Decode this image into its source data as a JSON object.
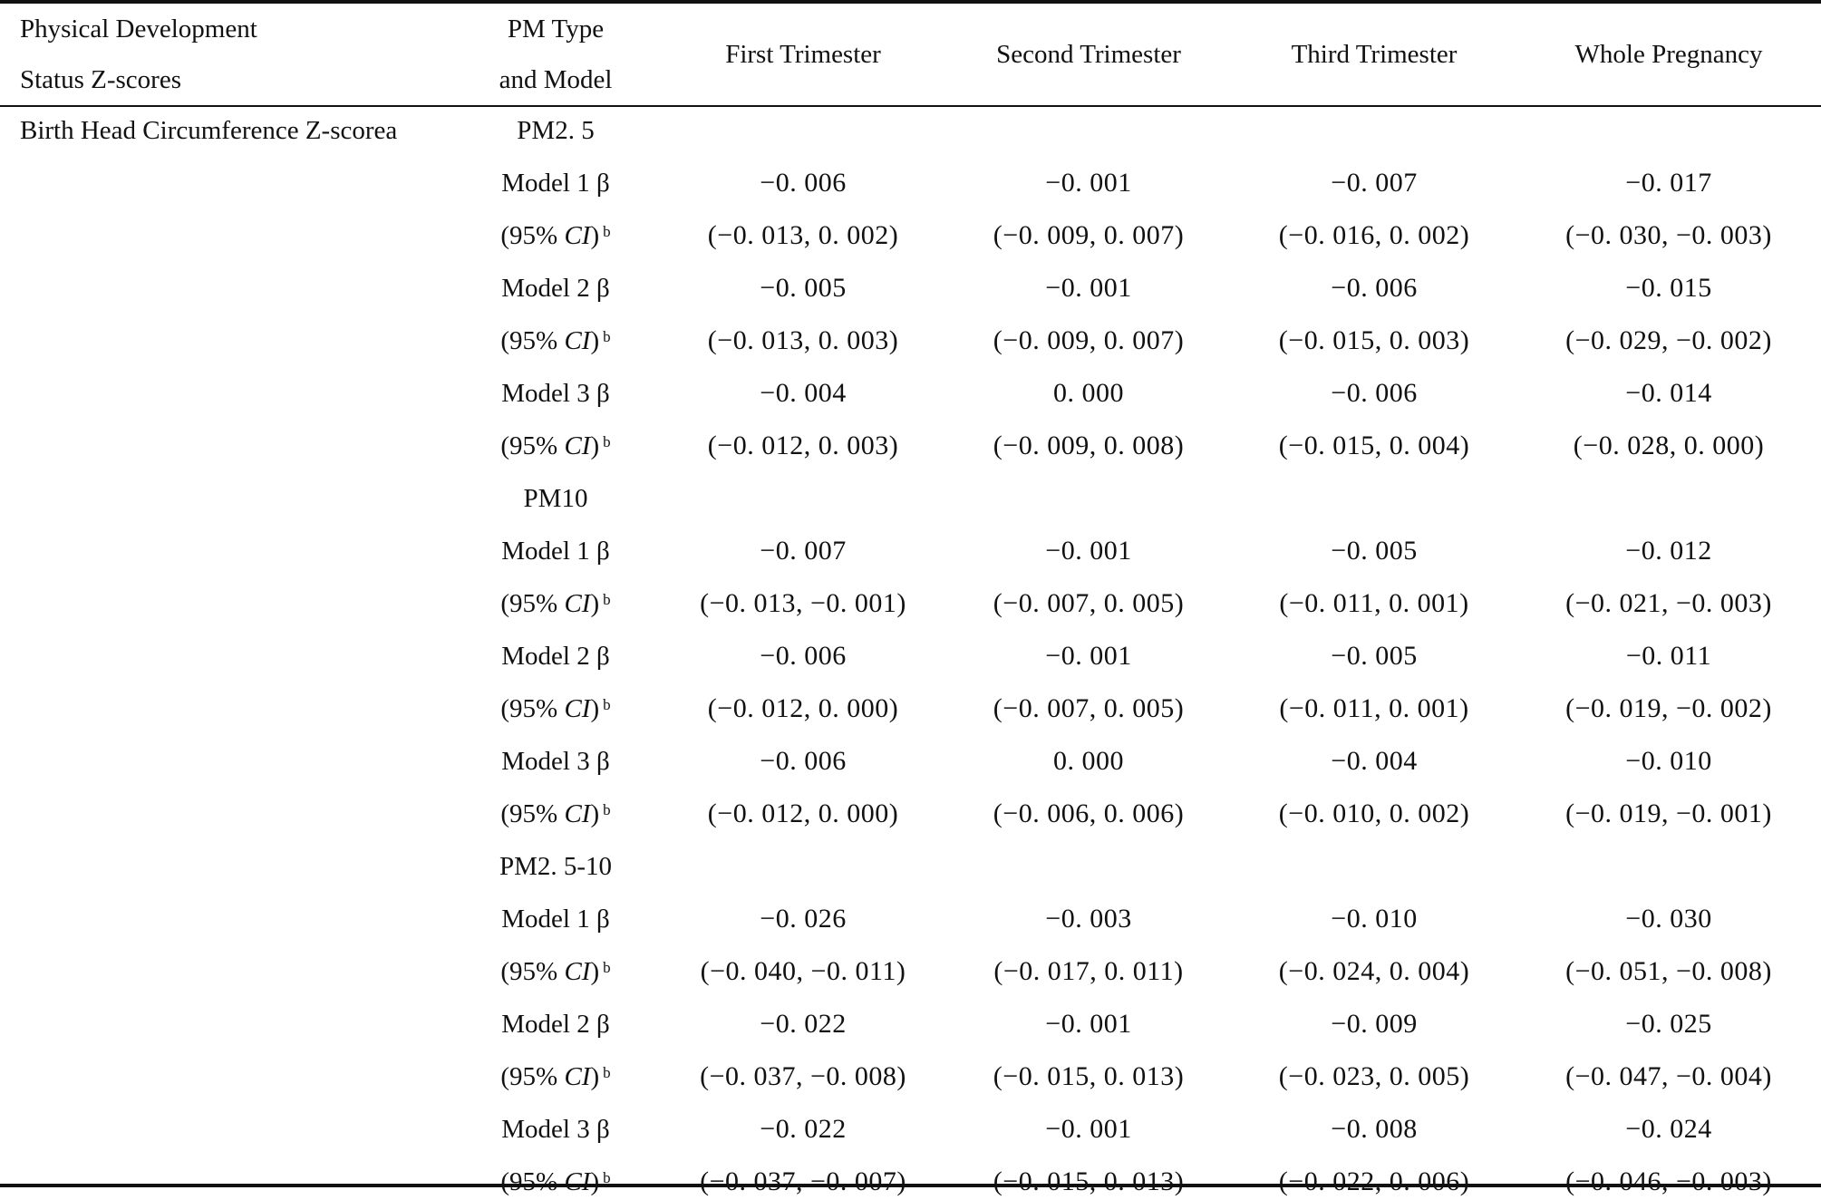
{
  "header": {
    "col1_line1": "Physical Development",
    "col1_line2": "Status Z-scores",
    "col2_line1": "PM Type",
    "col2_line2": "and Model",
    "periods": [
      "First Trimester",
      "Second Trimester",
      "Third Trimester",
      "Whole Pregnancy"
    ]
  },
  "outcome": "Birth Head Circumference Z-scorea",
  "ci_label": {
    "open": "(95% ",
    "ci": "CI",
    "close": ")",
    "sup": "b"
  },
  "groups": [
    {
      "pm_type": "PM2. 5",
      "models": [
        {
          "label": "Model 1 β",
          "beta": [
            "−0. 006",
            "−0. 001",
            "−0. 007",
            "−0. 017"
          ],
          "ci": [
            "(−0. 013, 0. 002)",
            "(−0. 009, 0. 007)",
            "(−0. 016, 0. 002)",
            "(−0. 030, −0. 003)"
          ]
        },
        {
          "label": "Model 2 β",
          "beta": [
            "−0. 005",
            "−0. 001",
            "−0. 006",
            "−0. 015"
          ],
          "ci": [
            "(−0. 013, 0. 003)",
            "(−0. 009, 0. 007)",
            "(−0. 015, 0. 003)",
            "(−0. 029, −0. 002)"
          ]
        },
        {
          "label": "Model 3 β",
          "beta": [
            "−0. 004",
            "0. 000",
            "−0. 006",
            "−0. 014"
          ],
          "ci": [
            "(−0. 012, 0. 003)",
            "(−0. 009, 0. 008)",
            "(−0. 015, 0. 004)",
            "(−0. 028, 0. 000)"
          ]
        }
      ]
    },
    {
      "pm_type": "PM10",
      "models": [
        {
          "label": "Model 1 β",
          "beta": [
            "−0. 007",
            "−0. 001",
            "−0. 005",
            "−0. 012"
          ],
          "ci": [
            "(−0. 013, −0. 001)",
            "(−0. 007, 0. 005)",
            "(−0. 011, 0. 001)",
            "(−0. 021, −0. 003)"
          ]
        },
        {
          "label": "Model 2 β",
          "beta": [
            "−0. 006",
            "−0. 001",
            "−0. 005",
            "−0. 011"
          ],
          "ci": [
            "(−0. 012, 0. 000)",
            "(−0. 007, 0. 005)",
            "(−0. 011, 0. 001)",
            "(−0. 019, −0. 002)"
          ]
        },
        {
          "label": "Model 3 β",
          "beta": [
            "−0. 006",
            "0. 000",
            "−0. 004",
            "−0. 010"
          ],
          "ci": [
            "(−0. 012, 0. 000)",
            "(−0. 006, 0. 006)",
            "(−0. 010, 0. 002)",
            "(−0. 019, −0. 001)"
          ]
        }
      ]
    },
    {
      "pm_type": "PM2. 5-10",
      "models": [
        {
          "label": "Model 1 β",
          "beta": [
            "−0. 026",
            "−0. 003",
            "−0. 010",
            "−0. 030"
          ],
          "ci": [
            "(−0. 040, −0. 011)",
            "(−0. 017, 0. 011)",
            "(−0. 024, 0. 004)",
            "(−0. 051, −0. 008)"
          ]
        },
        {
          "label": "Model 2 β",
          "beta": [
            "−0. 022",
            "−0. 001",
            "−0. 009",
            "−0. 025"
          ],
          "ci": [
            "(−0. 037, −0. 008)",
            "(−0. 015, 0. 013)",
            "(−0. 023, 0. 005)",
            "(−0. 047, −0. 004)"
          ]
        },
        {
          "label": "Model 3 β",
          "beta": [
            "−0. 022",
            "−0. 001",
            "−0. 008",
            "−0. 024"
          ],
          "ci": [
            "(−0. 037, −0. 007)",
            "(−0. 015, 0. 013)",
            "(−0. 022, 0. 006)",
            "(−0. 046, −0. 003)"
          ]
        }
      ]
    }
  ]
}
